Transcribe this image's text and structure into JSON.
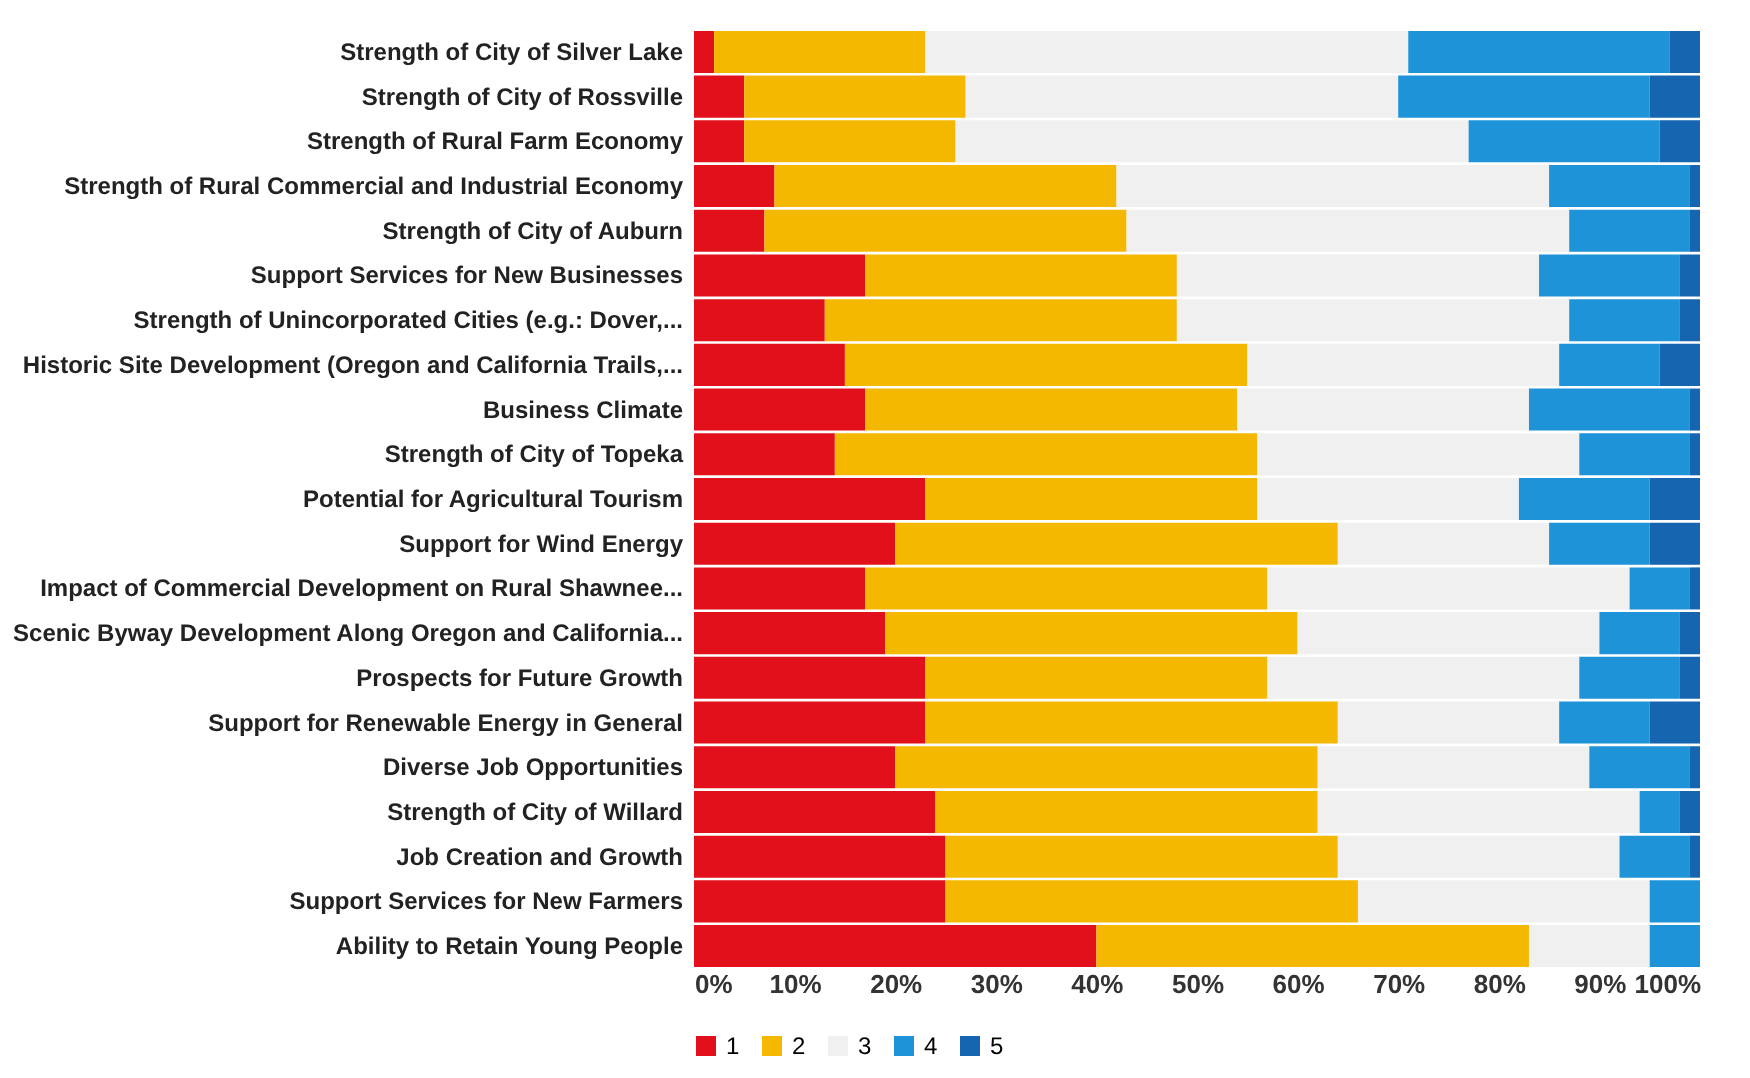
{
  "chart_data": {
    "type": "bar",
    "orientation": "horizontal",
    "stacked": true,
    "categories": [
      "Strength of City of Silver Lake",
      "Strength of City of Rossville",
      "Strength of Rural Farm Economy",
      "Strength of Rural Commercial and Industrial Economy",
      "Strength of City of Auburn",
      "Support Services for New Businesses",
      "Strength of Unincorporated Cities (e.g.: Dover,...",
      "Historic Site Development (Oregon and California Trails,...",
      "Business Climate",
      "Strength of City of Topeka",
      "Potential for Agricultural Tourism",
      "Support for Wind Energy",
      "Impact of Commercial Development on Rural Shawnee...",
      "Scenic Byway Development Along Oregon and California...",
      "Prospects for Future Growth",
      "Support for Renewable Energy in General",
      "Diverse Job Opportunities",
      "Strength of City of Willard",
      "Job Creation and Growth",
      "Support Services for New Farmers",
      "Ability to Retain Young People"
    ],
    "series": [
      {
        "name": "1",
        "color": "#e2101a",
        "values": [
          2,
          5,
          5,
          8,
          7,
          17,
          13,
          15,
          17,
          14,
          23,
          20,
          17,
          19,
          23,
          23,
          20,
          24,
          25,
          25,
          40
        ]
      },
      {
        "name": "2",
        "color": "#f5b800",
        "values": [
          21,
          22,
          21,
          34,
          36,
          31,
          35,
          40,
          37,
          42,
          33,
          44,
          40,
          41,
          34,
          41,
          42,
          38,
          39,
          41,
          43
        ]
      },
      {
        "name": "3",
        "color": "#f0f0f0",
        "values": [
          48,
          43,
          51,
          43,
          44,
          36,
          39,
          31,
          29,
          32,
          26,
          21,
          36,
          30,
          31,
          22,
          27,
          32,
          28,
          29,
          12
        ]
      },
      {
        "name": "4",
        "color": "#1f93d8",
        "values": [
          26,
          25,
          19,
          14,
          12,
          14,
          11,
          10,
          16,
          11,
          13,
          10,
          6,
          8,
          10,
          9,
          10,
          4,
          7,
          5,
          5
        ]
      },
      {
        "name": "5",
        "color": "#1565b0",
        "values": [
          3,
          5,
          4,
          1,
          1,
          2,
          2,
          4,
          1,
          1,
          5,
          5,
          1,
          2,
          2,
          5,
          1,
          2,
          1,
          0,
          0
        ]
      }
    ],
    "xlim": [
      0,
      100
    ],
    "xticks": [
      {
        "value": 0,
        "label": "0%"
      },
      {
        "value": 10,
        "label": "10%"
      },
      {
        "value": 20,
        "label": "20%"
      },
      {
        "value": 30,
        "label": "30%"
      },
      {
        "value": 40,
        "label": "40%"
      },
      {
        "value": 50,
        "label": "50%"
      },
      {
        "value": 60,
        "label": "60%"
      },
      {
        "value": 70,
        "label": "70%"
      },
      {
        "value": 80,
        "label": "80%"
      },
      {
        "value": 90,
        "label": "90%"
      },
      {
        "value": 100,
        "label": "100%"
      }
    ],
    "grid": false,
    "legend": "bottom"
  }
}
